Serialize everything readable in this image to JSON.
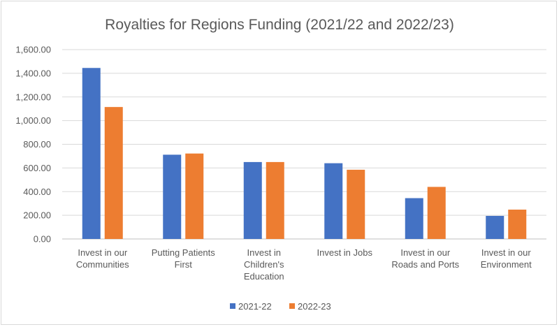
{
  "chart_data": {
    "type": "bar",
    "title": "Royalties for Regions Funding (2021/22 and 2022/23)",
    "categories": [
      [
        "Invest in our",
        "Communities"
      ],
      [
        "Putting Patients",
        "First"
      ],
      [
        "Invest in",
        "Children's",
        "Education"
      ],
      [
        "Invest in Jobs"
      ],
      [
        "Invest in our",
        "Roads and Ports"
      ],
      [
        "Invest in our",
        "Environment"
      ]
    ],
    "series": [
      {
        "name": "2021-22",
        "color": "#4472c4",
        "values": [
          1445,
          712,
          650,
          640,
          345,
          195
        ]
      },
      {
        "name": "2022-23",
        "color": "#ed7d31",
        "values": [
          1115,
          722,
          650,
          585,
          440,
          248
        ]
      }
    ],
    "ylim": [
      0,
      1600
    ],
    "yticks": [
      0,
      200,
      400,
      600,
      800,
      1000,
      1200,
      1400,
      1600
    ],
    "ytick_labels": [
      "0.00",
      "200.00",
      "400.00",
      "600.00",
      "800.00",
      "1,000.00",
      "1,200.00",
      "1,400.00",
      "1,600.00"
    ],
    "grid": true,
    "legend_position": "bottom"
  }
}
